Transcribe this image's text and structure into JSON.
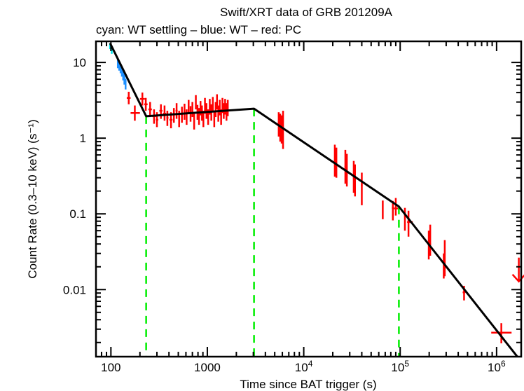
{
  "chart_data": {
    "type": "scatter",
    "title": "Swift/XRT data of GRB 201209A",
    "subtitle": "cyan: WT settling – blue: WT – red: PC",
    "xlabel": "Time since BAT trigger (s)",
    "ylabel": "Count Rate (0.3–10 keV) (s⁻¹)",
    "xscale": "log",
    "yscale": "log",
    "xlim": [
      70,
      1800000
    ],
    "ylim": [
      0.0013,
      19
    ],
    "x_ticks": [
      {
        "value": 100,
        "label": "100"
      },
      {
        "value": 1000,
        "label": "1000"
      },
      {
        "value": 10000,
        "label": "10⁴"
      },
      {
        "value": 100000,
        "label": "10⁵"
      },
      {
        "value": 1000000,
        "label": "10⁶"
      }
    ],
    "y_ticks": [
      {
        "value": 10,
        "label": "10"
      },
      {
        "value": 1,
        "label": "1"
      },
      {
        "value": 0.1,
        "label": "0.1"
      },
      {
        "value": 0.01,
        "label": "0.01"
      }
    ],
    "grid": false,
    "colors": {
      "wt_settling": "#00e5ee",
      "wt": "#1e90ff",
      "pc": "#ff0000",
      "model": "#000000",
      "breaks": "#00ee00"
    },
    "series": [
      {
        "name": "WT settling",
        "color_key": "wt_settling",
        "points": [
          {
            "t": 98,
            "t_lo": 96,
            "t_hi": 100,
            "r": 16.5,
            "r_lo": 15.0,
            "r_hi": 18.0
          },
          {
            "t": 102,
            "t_lo": 100,
            "t_hi": 104,
            "r": 14.5,
            "r_lo": 13.0,
            "r_hi": 16.0
          }
        ]
      },
      {
        "name": "WT",
        "color_key": "wt",
        "points": [
          {
            "t": 118,
            "t_lo": 116,
            "t_hi": 120,
            "r": 9.6,
            "r_lo": 8.4,
            "r_hi": 11.0
          },
          {
            "t": 122,
            "t_lo": 120,
            "t_hi": 124,
            "r": 9.0,
            "r_lo": 7.8,
            "r_hi": 10.2
          },
          {
            "t": 126,
            "t_lo": 124,
            "t_hi": 128,
            "r": 8.4,
            "r_lo": 7.2,
            "r_hi": 9.6
          },
          {
            "t": 130,
            "t_lo": 128,
            "t_hi": 132,
            "r": 7.6,
            "r_lo": 6.5,
            "r_hi": 8.8
          },
          {
            "t": 134,
            "t_lo": 132,
            "t_hi": 136,
            "r": 6.8,
            "r_lo": 5.8,
            "r_hi": 7.9
          },
          {
            "t": 138,
            "t_lo": 136,
            "t_hi": 140,
            "r": 6.0,
            "r_lo": 5.1,
            "r_hi": 7.0
          },
          {
            "t": 142,
            "t_lo": 140,
            "t_hi": 144,
            "r": 5.2,
            "r_lo": 4.4,
            "r_hi": 6.1
          }
        ]
      },
      {
        "name": "PC",
        "color_key": "pc",
        "points": [
          {
            "t": 153,
            "t_lo": 146,
            "t_hi": 160,
            "r": 3.4,
            "r_lo": 2.8,
            "r_hi": 4.1
          },
          {
            "t": 177,
            "t_lo": 160,
            "t_hi": 200,
            "r": 2.15,
            "r_lo": 1.7,
            "r_hi": 2.7
          },
          {
            "t": 212,
            "t_lo": 200,
            "t_hi": 225,
            "r": 3.3,
            "r_lo": 2.7,
            "r_hi": 4.0
          },
          {
            "t": 230,
            "t_lo": 222,
            "t_hi": 240,
            "r": 2.8,
            "r_lo": 2.3,
            "r_hi": 3.4
          },
          {
            "t": 255,
            "t_lo": 245,
            "t_hi": 266,
            "r": 2.4,
            "r_lo": 1.9,
            "r_hi": 3.0
          },
          {
            "t": 280,
            "t_lo": 268,
            "t_hi": 292,
            "r": 1.95,
            "r_lo": 1.55,
            "r_hi": 2.4
          },
          {
            "t": 300,
            "t_lo": 292,
            "t_hi": 310,
            "r": 1.75,
            "r_lo": 1.4,
            "r_hi": 2.2
          },
          {
            "t": 330,
            "t_lo": 318,
            "t_hi": 342,
            "r": 2.3,
            "r_lo": 1.8,
            "r_hi": 2.8
          },
          {
            "t": 360,
            "t_lo": 346,
            "t_hi": 374,
            "r": 2.1,
            "r_lo": 1.7,
            "r_hi": 2.7
          },
          {
            "t": 385,
            "t_lo": 376,
            "t_hi": 395,
            "r": 1.85,
            "r_lo": 1.45,
            "r_hi": 2.3
          },
          {
            "t": 420,
            "t_lo": 405,
            "t_hi": 435,
            "r": 1.75,
            "r_lo": 1.35,
            "r_hi": 2.2
          },
          {
            "t": 450,
            "t_lo": 440,
            "t_hi": 460,
            "r": 2.0,
            "r_lo": 1.6,
            "r_hi": 2.5
          },
          {
            "t": 480,
            "t_lo": 468,
            "t_hi": 492,
            "r": 2.3,
            "r_lo": 1.8,
            "r_hi": 2.9
          },
          {
            "t": 510,
            "t_lo": 500,
            "t_hi": 520,
            "r": 1.8,
            "r_lo": 1.4,
            "r_hi": 2.3
          },
          {
            "t": 545,
            "t_lo": 532,
            "t_hi": 558,
            "r": 2.05,
            "r_lo": 1.6,
            "r_hi": 2.6
          },
          {
            "t": 580,
            "t_lo": 568,
            "t_hi": 592,
            "r": 2.25,
            "r_lo": 1.75,
            "r_hi": 2.85
          },
          {
            "t": 610,
            "t_lo": 600,
            "t_hi": 620,
            "r": 1.9,
            "r_lo": 1.5,
            "r_hi": 2.4
          },
          {
            "t": 640,
            "t_lo": 630,
            "t_hi": 650,
            "r": 2.6,
            "r_lo": 2.1,
            "r_hi": 3.2
          },
          {
            "t": 670,
            "t_lo": 660,
            "t_hi": 680,
            "r": 2.1,
            "r_lo": 1.65,
            "r_hi": 2.65
          },
          {
            "t": 700,
            "t_lo": 690,
            "t_hi": 710,
            "r": 2.4,
            "r_lo": 1.9,
            "r_hi": 3.0
          },
          {
            "t": 730,
            "t_lo": 720,
            "t_hi": 740,
            "r": 1.7,
            "r_lo": 1.3,
            "r_hi": 2.2
          },
          {
            "t": 760,
            "t_lo": 750,
            "t_hi": 770,
            "r": 3.0,
            "r_lo": 2.4,
            "r_hi": 3.7
          },
          {
            "t": 790,
            "t_lo": 780,
            "t_hi": 800,
            "r": 2.2,
            "r_lo": 1.75,
            "r_hi": 2.75
          },
          {
            "t": 820,
            "t_lo": 810,
            "t_hi": 830,
            "r": 1.95,
            "r_lo": 1.5,
            "r_hi": 2.5
          },
          {
            "t": 850,
            "t_lo": 840,
            "t_hi": 860,
            "r": 2.5,
            "r_lo": 2.0,
            "r_hi": 3.1
          },
          {
            "t": 880,
            "t_lo": 870,
            "t_hi": 890,
            "r": 2.15,
            "r_lo": 1.7,
            "r_hi": 2.7
          },
          {
            "t": 910,
            "t_lo": 900,
            "t_hi": 920,
            "r": 1.8,
            "r_lo": 1.4,
            "r_hi": 2.3
          },
          {
            "t": 945,
            "t_lo": 932,
            "t_hi": 958,
            "r": 2.7,
            "r_lo": 2.1,
            "r_hi": 3.4
          },
          {
            "t": 980,
            "t_lo": 968,
            "t_hi": 992,
            "r": 2.3,
            "r_lo": 1.8,
            "r_hi": 2.9
          },
          {
            "t": 1020,
            "t_lo": 1005,
            "t_hi": 1035,
            "r": 1.9,
            "r_lo": 1.5,
            "r_hi": 2.4
          },
          {
            "t": 1060,
            "t_lo": 1045,
            "t_hi": 1075,
            "r": 2.6,
            "r_lo": 2.05,
            "r_hi": 3.3
          },
          {
            "t": 1100,
            "t_lo": 1085,
            "t_hi": 1115,
            "r": 2.2,
            "r_lo": 1.7,
            "r_hi": 2.8
          },
          {
            "t": 1140,
            "t_lo": 1125,
            "t_hi": 1155,
            "r": 2.8,
            "r_lo": 2.2,
            "r_hi": 3.5
          },
          {
            "t": 1180,
            "t_lo": 1165,
            "t_hi": 1195,
            "r": 1.8,
            "r_lo": 1.4,
            "r_hi": 2.3
          },
          {
            "t": 1220,
            "t_lo": 1205,
            "t_hi": 1235,
            "r": 2.4,
            "r_lo": 1.9,
            "r_hi": 3.0
          },
          {
            "t": 1260,
            "t_lo": 1245,
            "t_hi": 1275,
            "r": 3.0,
            "r_lo": 2.4,
            "r_hi": 3.8
          },
          {
            "t": 1300,
            "t_lo": 1285,
            "t_hi": 1315,
            "r": 2.1,
            "r_lo": 1.65,
            "r_hi": 2.7
          },
          {
            "t": 1345,
            "t_lo": 1330,
            "t_hi": 1360,
            "r": 2.5,
            "r_lo": 2.0,
            "r_hi": 3.2
          },
          {
            "t": 1390,
            "t_lo": 1375,
            "t_hi": 1405,
            "r": 1.9,
            "r_lo": 1.5,
            "r_hi": 2.4
          },
          {
            "t": 1435,
            "t_lo": 1420,
            "t_hi": 1450,
            "r": 2.7,
            "r_lo": 2.15,
            "r_hi": 3.4
          },
          {
            "t": 1480,
            "t_lo": 1465,
            "t_hi": 1495,
            "r": 2.3,
            "r_lo": 1.8,
            "r_hi": 2.9
          },
          {
            "t": 1530,
            "t_lo": 1515,
            "t_hi": 1545,
            "r": 2.6,
            "r_lo": 2.05,
            "r_hi": 3.3
          },
          {
            "t": 1580,
            "t_lo": 1565,
            "t_hi": 1595,
            "r": 2.2,
            "r_lo": 1.7,
            "r_hi": 2.9
          },
          {
            "t": 1630,
            "t_lo": 1610,
            "t_hi": 1650,
            "r": 2.5,
            "r_lo": 1.95,
            "r_hi": 3.2
          },
          {
            "t": 5500,
            "t_lo": 5400,
            "t_hi": 5600,
            "r": 1.6,
            "r_lo": 1.05,
            "r_hi": 2.2
          },
          {
            "t": 5700,
            "t_lo": 5600,
            "t_hi": 5800,
            "r": 1.3,
            "r_lo": 0.9,
            "r_hi": 2.1
          },
          {
            "t": 5900,
            "t_lo": 5800,
            "t_hi": 6000,
            "r": 1.45,
            "r_lo": 0.85,
            "r_hi": 2.0
          },
          {
            "t": 6100,
            "t_lo": 6000,
            "t_hi": 6200,
            "r": 1.15,
            "r_lo": 0.72,
            "r_hi": 2.3
          },
          {
            "t": 21000,
            "t_lo": 20600,
            "t_hi": 21400,
            "r": 0.5,
            "r_lo": 0.31,
            "r_hi": 0.82
          },
          {
            "t": 21800,
            "t_lo": 21400,
            "t_hi": 22200,
            "r": 0.45,
            "r_lo": 0.3,
            "r_hi": 0.75
          },
          {
            "t": 27000,
            "t_lo": 26500,
            "t_hi": 27500,
            "r": 0.42,
            "r_lo": 0.25,
            "r_hi": 0.7
          },
          {
            "t": 28000,
            "t_lo": 27500,
            "t_hi": 28500,
            "r": 0.38,
            "r_lo": 0.23,
            "r_hi": 0.62
          },
          {
            "t": 33000,
            "t_lo": 32400,
            "t_hi": 33600,
            "r": 0.3,
            "r_lo": 0.19,
            "r_hi": 0.5
          },
          {
            "t": 34000,
            "t_lo": 33600,
            "t_hi": 34400,
            "r": 0.28,
            "r_lo": 0.17,
            "r_hi": 0.45
          },
          {
            "t": 40000,
            "t_lo": 39200,
            "t_hi": 40800,
            "r": 0.24,
            "r_lo": 0.13,
            "r_hi": 0.35
          },
          {
            "t": 66000,
            "t_lo": 65000,
            "t_hi": 67000,
            "r": 0.125,
            "r_lo": 0.085,
            "r_hi": 0.15
          },
          {
            "t": 84000,
            "t_lo": 82000,
            "t_hi": 86000,
            "r": 0.12,
            "r_lo": 0.082,
            "r_hi": 0.148
          },
          {
            "t": 90000,
            "t_lo": 86000,
            "t_hi": 95000,
            "r": 0.118,
            "r_lo": 0.095,
            "r_hi": 0.162
          },
          {
            "t": 112000,
            "t_lo": 110000,
            "t_hi": 114000,
            "r": 0.095,
            "r_lo": 0.06,
            "r_hi": 0.12
          },
          {
            "t": 122000,
            "t_lo": 118000,
            "t_hi": 135000,
            "r": 0.078,
            "r_lo": 0.05,
            "r_hi": 0.11
          },
          {
            "t": 198000,
            "t_lo": 194000,
            "t_hi": 202000,
            "r": 0.042,
            "r_lo": 0.025,
            "r_hi": 0.06
          },
          {
            "t": 205000,
            "t_lo": 201000,
            "t_hi": 209000,
            "r": 0.04,
            "r_lo": 0.028,
            "r_hi": 0.072
          },
          {
            "t": 283000,
            "t_lo": 278000,
            "t_hi": 288000,
            "r": 0.023,
            "r_lo": 0.014,
            "r_hi": 0.03
          },
          {
            "t": 290000,
            "t_lo": 285000,
            "t_hi": 295000,
            "r": 0.02,
            "r_lo": 0.015,
            "r_hi": 0.045
          },
          {
            "t": 460000,
            "t_lo": 445000,
            "t_hi": 475000,
            "r": 0.0092,
            "r_lo": 0.0072,
            "r_hi": 0.0112
          },
          {
            "t": 1120000,
            "t_lo": 880000,
            "t_hi": 1430000,
            "r": 0.0027,
            "r_lo": 0.00195,
            "r_hi": 0.0036
          }
        ]
      }
    ],
    "upper_limits": [
      {
        "name": "PC upper limit",
        "color_key": "pc",
        "t": 1700000,
        "r": 0.018
      }
    ],
    "model": {
      "name": "broken power-law fit",
      "points": [
        {
          "t": 98,
          "r": 18.0
        },
        {
          "t": 232,
          "r": 1.95
        },
        {
          "t": 3050,
          "r": 2.45
        },
        {
          "t": 97000,
          "r": 0.125
        },
        {
          "t": 1800000,
          "r": 0.00112
        }
      ]
    },
    "breaks": [
      232,
      3050,
      97000
    ]
  }
}
